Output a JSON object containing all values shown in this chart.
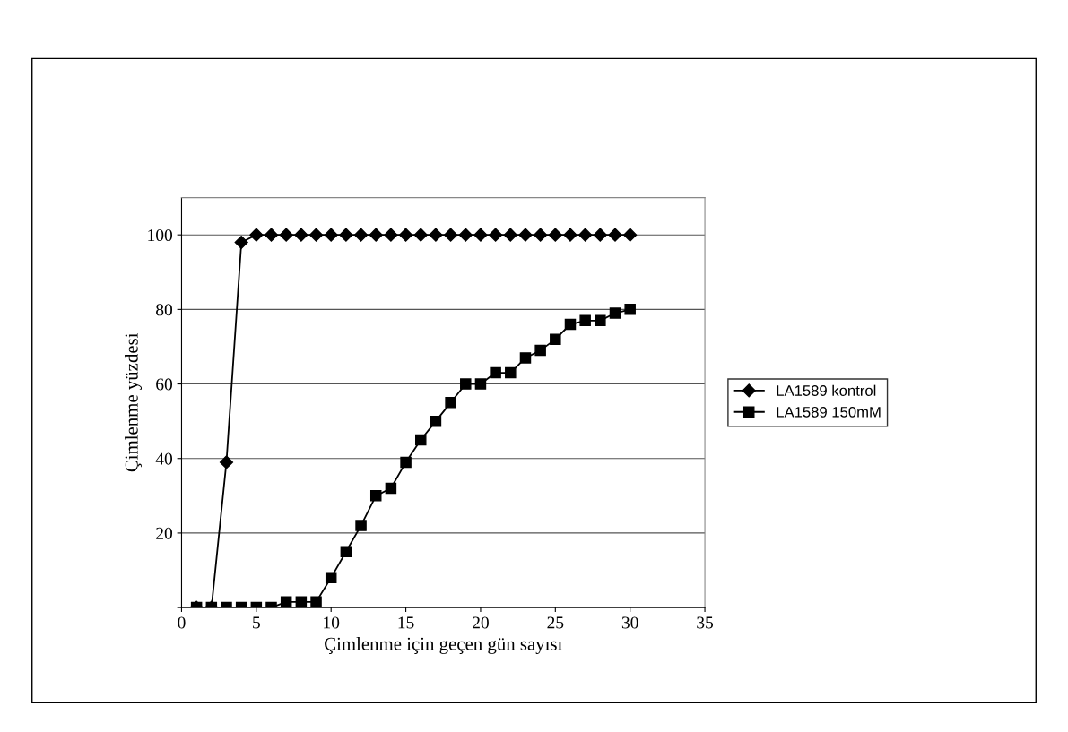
{
  "chart_data": {
    "type": "line",
    "xlabel": "Çimlenme için geçen gün sayısı",
    "ylabel": "Çimlenme yüzdesi",
    "x": [
      1,
      2,
      3,
      4,
      5,
      6,
      7,
      8,
      9,
      10,
      11,
      12,
      13,
      14,
      15,
      16,
      17,
      18,
      19,
      20,
      21,
      22,
      23,
      24,
      25,
      26,
      27,
      28,
      29,
      30
    ],
    "series": [
      {
        "name": "LA1589 kontrol",
        "color": "#000000",
        "marker": "diamond",
        "values": [
          0,
          0,
          39,
          98,
          100,
          100,
          100,
          100,
          100,
          100,
          100,
          100,
          100,
          100,
          100,
          100,
          100,
          100,
          100,
          100,
          100,
          100,
          100,
          100,
          100,
          100,
          100,
          100,
          100,
          100
        ]
      },
      {
        "name": "LA1589 150mM",
        "color": "#000000",
        "marker": "square",
        "values": [
          0,
          0,
          0,
          0,
          0,
          0,
          1.5,
          1.5,
          1.5,
          8,
          15,
          22,
          30,
          32,
          39,
          45,
          50,
          55,
          60,
          60,
          63,
          63,
          67,
          69,
          72,
          76,
          77,
          77,
          79,
          80
        ]
      }
    ],
    "xlim": [
      0,
      35
    ],
    "xticks": [
      0,
      5,
      10,
      15,
      20,
      25,
      30,
      35
    ],
    "ylim": [
      0,
      110
    ],
    "yticks": [
      {
        "value": 0,
        "label": null
      },
      20,
      40,
      60,
      80,
      100
    ],
    "grid": "y",
    "legend": "right",
    "line_style": "solid"
  }
}
